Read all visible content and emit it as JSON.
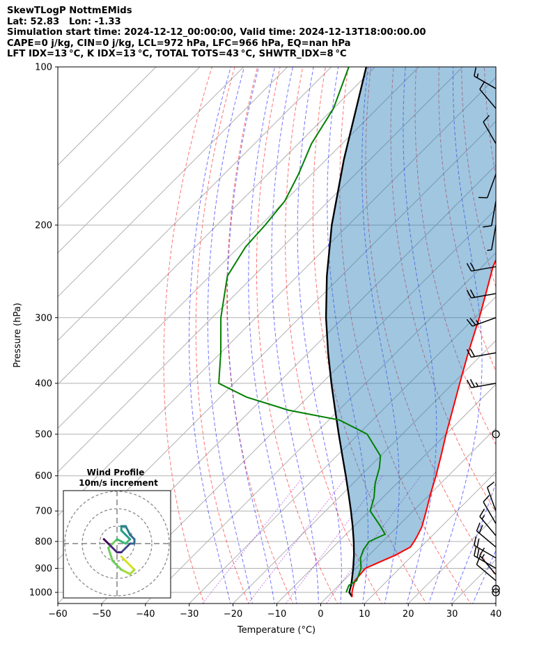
{
  "header": {
    "line1": "SkewTLogP NottmEMids",
    "line2": "Lat: 52.83   Lon: -1.33",
    "line3": "Simulation start time: 2024-12-12_00:00:00, Valid time: 2024-12-13T18:00:00.00",
    "line4": "CAPE=0 j/kg, CIN=0 j/kg, LCL=972 hPa, LFC=966 hPa, EQ=nan hPa",
    "line5": "LFT IDX=13 °C, K IDX=13 °C, TOTAL TOTS=43 °C, SHWTR_IDX=8 °C"
  },
  "inset": {
    "title": "Wind Profile",
    "subtitle": "10m/s increment"
  },
  "chart_data": {
    "type": "line",
    "title": "SkewTLogP NottmEMids",
    "xlabel": "Temperature (°C)",
    "ylabel": "Pressure (hPa)",
    "xlim": [
      -60,
      40
    ],
    "ylim": [
      1050,
      100
    ],
    "y_scale": "log",
    "skew": "skew-T log-P",
    "grid": true,
    "x_ticks": [
      -60,
      -50,
      -40,
      -30,
      -20,
      -10,
      0,
      10,
      20,
      30,
      40
    ],
    "x_tick_labels": [
      "−60",
      "−50",
      "−40",
      "−30",
      "−20",
      "−10",
      "0",
      "10",
      "20",
      "30",
      "40"
    ],
    "y_ticks": [
      1000,
      900,
      800,
      700,
      600,
      500,
      400,
      300,
      200,
      100
    ],
    "y_tick_labels": [
      "1000",
      "900",
      "800",
      "700",
      "600",
      "500",
      "400",
      "300",
      "200",
      "100"
    ],
    "series": [
      {
        "key": "temperature",
        "color": "#ff0000",
        "pressure": [
          1020,
          1000,
          975,
          950,
          900,
          870,
          850,
          820,
          800,
          780,
          750,
          700,
          650,
          600,
          550,
          500,
          450,
          400,
          350,
          300,
          270,
          240,
          220,
          200,
          180,
          160,
          140,
          120,
          112,
          100
        ],
        "values": [
          5.7,
          4.6,
          3.6,
          2.6,
          2.2,
          4.4,
          6.0,
          7.6,
          7.2,
          6.6,
          5.6,
          3.0,
          0.1,
          -2.8,
          -6.2,
          -10.0,
          -14.0,
          -18.5,
          -23.5,
          -29.0,
          -33.0,
          -37.5,
          -40.0,
          -43.0,
          -46.5,
          -50.0,
          -55.5,
          -62.5,
          -65.5,
          -69.5
        ]
      },
      {
        "key": "dewpoint",
        "color": "#008000",
        "pressure": [
          1000,
          970,
          950,
          900,
          860,
          830,
          800,
          775,
          750,
          700,
          660,
          620,
          580,
          550,
          500,
          470,
          450,
          425,
          400,
          350,
          300,
          250,
          220,
          200,
          180,
          160,
          140,
          120,
          100
        ],
        "values": [
          3.3,
          2.3,
          3.0,
          1.2,
          -1.3,
          -2.5,
          -3.1,
          -1.1,
          -3.8,
          -9.8,
          -12.0,
          -15.0,
          -17.5,
          -20.0,
          -28.0,
          -37.5,
          -51.5,
          -64.0,
          -73.5,
          -80.0,
          -88.0,
          -96.0,
          -98.5,
          -99.0,
          -100.0,
          -103.0,
          -107.0,
          -110.0,
          -116.0
        ]
      },
      {
        "key": "parcel",
        "color": "#000000",
        "pressure": [
          1020,
          1000,
          972,
          950,
          900,
          850,
          800,
          750,
          700,
          650,
          600,
          550,
          500,
          450,
          400,
          350,
          300,
          250,
          200,
          150,
          100
        ],
        "values": [
          5.7,
          4.0,
          2.9,
          1.9,
          -0.6,
          -3.4,
          -6.6,
          -10.2,
          -14.2,
          -18.6,
          -23.4,
          -28.7,
          -34.5,
          -40.8,
          -47.8,
          -55.5,
          -64.0,
          -73.3,
          -83.8,
          -96.0,
          -112.0
        ]
      }
    ],
    "wind_barbs": {
      "pressure": [
        1000,
        985,
        950,
        925,
        900,
        860,
        820,
        780,
        740,
        700,
        500,
        400,
        350,
        300,
        270,
        240,
        200,
        180,
        160,
        140,
        120,
        110
      ],
      "speed_kt": [
        0,
        0,
        10,
        15,
        20,
        20,
        20,
        15,
        10,
        10,
        0,
        25,
        20,
        25,
        20,
        20,
        5,
        10,
        10,
        10,
        10,
        15
      ],
      "direction_deg": [
        0,
        0,
        310,
        320,
        300,
        300,
        310,
        320,
        330,
        340,
        0,
        260,
        260,
        250,
        260,
        260,
        190,
        190,
        200,
        330,
        320,
        300
      ]
    },
    "hodograph": {
      "title": "Wind Profile",
      "subtitle": "10m/s increment",
      "ring_step_ms": 10,
      "rings": 3,
      "u": [
        1,
        2,
        3,
        4,
        3,
        1,
        -1,
        -2,
        0,
        2,
        3,
        2,
        1,
        1,
        2,
        3,
        4,
        4,
        3,
        2,
        1,
        0,
        -1,
        -2,
        -3,
        -3
      ],
      "v": [
        -3,
        -4,
        -5,
        -6,
        -7,
        -6,
        -4,
        -1,
        1,
        0,
        1,
        2,
        3,
        4,
        4,
        2,
        1,
        0,
        0,
        -1,
        -2,
        -2,
        -1,
        0,
        1,
        1
      ]
    },
    "background_colors": {
      "cape_shade": "#1f77b4",
      "dry_adiabat": "#ff0000",
      "moist_adiabat": "#0000ff",
      "mixing_ratio": "#9400d3",
      "isotherm": "#808080"
    }
  }
}
